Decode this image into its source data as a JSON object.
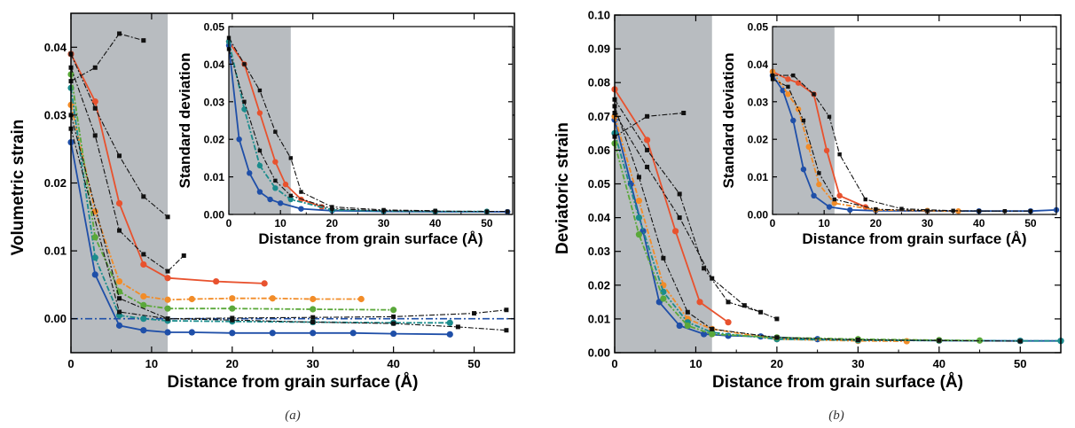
{
  "colors": {
    "shade": "#b8bcc0",
    "background_lines": "#555555",
    "black_series": "#111111",
    "red": "#e8522e",
    "orange": "#f28c28",
    "blue": "#1f4fa8",
    "teal": "#1a8c8c",
    "green": "#5aa83a",
    "zero_line": "#1f4fa8"
  },
  "chart_data": [
    {
      "id": "a",
      "type": "line",
      "caption": "(a)",
      "xlabel": "Distance from grain surface (Å)",
      "ylabel": "Volumetric strain",
      "xlim": [
        0,
        55
      ],
      "ylim": [
        -0.005,
        0.045
      ],
      "xticks": [
        0,
        10,
        20,
        30,
        40,
        50
      ],
      "xtick_labels": [
        "0",
        "10",
        "20",
        "30",
        "40",
        "50"
      ],
      "yticks": [
        0.0,
        0.01,
        0.02,
        0.03,
        0.04
      ],
      "ytick_labels": [
        "0.00",
        "0.01",
        "0.02",
        "0.03",
        "0.04"
      ],
      "shaded_region": [
        0,
        12
      ],
      "zero_line": 0.0,
      "series": [
        {
          "color": "red",
          "marker": "circle",
          "style": "solid",
          "x": [
            0,
            3,
            6,
            9,
            12,
            18,
            24
          ],
          "y": [
            0.039,
            0.032,
            0.017,
            0.008,
            0.006,
            0.0055,
            0.0052
          ]
        },
        {
          "color": "orange",
          "marker": "circle",
          "style": "dashdot",
          "x": [
            0,
            3,
            6,
            9,
            12,
            15,
            20,
            25,
            30,
            36
          ],
          "y": [
            0.0315,
            0.0158,
            0.0055,
            0.0033,
            0.0028,
            0.0029,
            0.003,
            0.003,
            0.0029,
            0.0029
          ]
        },
        {
          "color": "blue",
          "marker": "circle",
          "style": "solid",
          "x": [
            0,
            3,
            6,
            9,
            12,
            15,
            20,
            25,
            30,
            35,
            40,
            47
          ],
          "y": [
            0.026,
            0.0065,
            -0.001,
            -0.0017,
            -0.002,
            -0.002,
            -0.0021,
            -0.0021,
            -0.0021,
            -0.0021,
            -0.0022,
            -0.0023
          ]
        },
        {
          "color": "teal",
          "marker": "circle",
          "style": "dashdot",
          "x": [
            0,
            3,
            6,
            9,
            12,
            20,
            30,
            40,
            47
          ],
          "y": [
            0.034,
            0.009,
            0.0005,
            0.0,
            -0.0003,
            -0.0004,
            -0.0005,
            -0.0006,
            -0.0006
          ]
        },
        {
          "color": "green",
          "marker": "circle",
          "style": "dashdot",
          "x": [
            0,
            3,
            6,
            9,
            12,
            20,
            30,
            40
          ],
          "y": [
            0.036,
            0.012,
            0.004,
            0.002,
            0.0015,
            0.0015,
            0.0014,
            0.0013
          ]
        },
        {
          "color": "black_series",
          "marker": "square",
          "style": "dashdot",
          "x": [
            0,
            3,
            6,
            9
          ],
          "y": [
            0.035,
            0.037,
            0.042,
            0.041
          ]
        },
        {
          "color": "black_series",
          "marker": "square",
          "style": "dashdot",
          "x": [
            0,
            3,
            6,
            9,
            12
          ],
          "y": [
            0.039,
            0.031,
            0.024,
            0.018,
            0.015
          ]
        },
        {
          "color": "black_series",
          "marker": "square",
          "style": "dashdot",
          "x": [
            0,
            3,
            6,
            9,
            12,
            14
          ],
          "y": [
            0.037,
            0.027,
            0.013,
            0.0095,
            0.007,
            0.0093
          ]
        },
        {
          "color": "black_series",
          "marker": "square",
          "style": "dashdot",
          "x": [
            0,
            6,
            12,
            20,
            30,
            40,
            48,
            54
          ],
          "y": [
            0.03,
            0.003,
            0.0,
            -0.0002,
            -0.0005,
            -0.0007,
            -0.0012,
            -0.0017
          ]
        },
        {
          "color": "black_series",
          "marker": "square",
          "style": "dashdot",
          "x": [
            0,
            6,
            12,
            20,
            30,
            40,
            50,
            54
          ],
          "y": [
            0.028,
            0.001,
            0.0,
            0.0001,
            0.0002,
            0.0003,
            0.0008,
            0.0013
          ]
        }
      ],
      "inset": {
        "xlabel": "Distance from grain surface (Å)",
        "ylabel": "Standard deviation",
        "xlim": [
          0,
          55
        ],
        "ylim": [
          0,
          0.05
        ],
        "xticks": [
          0,
          10,
          20,
          30,
          40,
          50
        ],
        "xtick_labels": [
          "0",
          "10",
          "20",
          "30",
          "40",
          "50"
        ],
        "yticks": [
          0.0,
          0.01,
          0.02,
          0.03,
          0.04,
          0.05
        ],
        "ytick_labels": [
          "0.00",
          "0.01",
          "0.02",
          "0.03",
          "0.04",
          "0.05"
        ],
        "shaded_region": [
          0,
          12
        ],
        "series": [
          {
            "color": "red",
            "marker": "circle",
            "style": "solid",
            "x": [
              0,
              3,
              6,
              9,
              11,
              14,
              18
            ],
            "y": [
              0.046,
              0.04,
              0.027,
              0.014,
              0.008,
              0.004,
              0.002
            ]
          },
          {
            "color": "blue",
            "marker": "circle",
            "style": "solid",
            "x": [
              0,
              2,
              4,
              6,
              8,
              10,
              14,
              20,
              30,
              40,
              50,
              54
            ],
            "y": [
              0.045,
              0.02,
              0.011,
              0.006,
              0.004,
              0.003,
              0.0015,
              0.001,
              0.0008,
              0.0007,
              0.0007,
              0.0007
            ]
          },
          {
            "color": "teal",
            "marker": "circle",
            "style": "dashdot",
            "x": [
              0,
              3,
              6,
              9,
              12,
              20,
              30,
              40,
              50
            ],
            "y": [
              0.046,
              0.028,
              0.013,
              0.007,
              0.004,
              0.0012,
              0.0009,
              0.0008,
              0.0008
            ]
          },
          {
            "color": "black_series",
            "marker": "square",
            "style": "dashdot",
            "x": [
              0,
              3,
              6,
              9,
              12,
              14,
              20,
              30,
              40
            ],
            "y": [
              0.047,
              0.04,
              0.033,
              0.022,
              0.015,
              0.006,
              0.002,
              0.0012,
              0.001
            ]
          },
          {
            "color": "black_series",
            "marker": "square",
            "style": "dashdot",
            "x": [
              0,
              3,
              6,
              9,
              12,
              20,
              30,
              40,
              50,
              54
            ],
            "y": [
              0.044,
              0.03,
              0.017,
              0.009,
              0.005,
              0.0015,
              0.001,
              0.0009,
              0.0008,
              0.0008
            ]
          }
        ]
      }
    },
    {
      "id": "b",
      "type": "line",
      "caption": "(b)",
      "xlabel": "Distance from grain surface (Å)",
      "ylabel": "Deviatoric strain",
      "xlim": [
        0,
        55
      ],
      "ylim": [
        0,
        0.1
      ],
      "xticks": [
        0,
        10,
        20,
        30,
        40,
        50
      ],
      "xtick_labels": [
        "0",
        "10",
        "20",
        "30",
        "40",
        "50"
      ],
      "yticks": [
        0.0,
        0.01,
        0.02,
        0.03,
        0.04,
        0.05,
        0.06,
        0.07,
        0.08,
        0.09,
        0.1
      ],
      "ytick_labels": [
        "0.00",
        "0.01",
        "0.02",
        "0.03",
        "0.04",
        "0.05",
        "0.06",
        "0.07",
        "0.08",
        "0.09",
        "0.10"
      ],
      "shaded_region": [
        0,
        12
      ],
      "series": [
        {
          "color": "red",
          "marker": "circle",
          "style": "solid",
          "x": [
            0,
            4,
            7.5,
            10.5,
            14
          ],
          "y": [
            0.078,
            0.063,
            0.036,
            0.015,
            0.009
          ]
        },
        {
          "color": "blue",
          "marker": "circle",
          "style": "solid",
          "x": [
            0,
            2,
            3.5,
            5.5,
            8,
            11,
            14,
            18,
            25,
            30,
            40,
            50,
            55
          ],
          "y": [
            0.069,
            0.05,
            0.036,
            0.015,
            0.008,
            0.0055,
            0.005,
            0.0048,
            0.004,
            0.0038,
            0.0036,
            0.0035,
            0.0035
          ]
        },
        {
          "color": "orange",
          "marker": "circle",
          "style": "dashdot",
          "x": [
            0,
            3,
            6,
            9,
            12,
            20,
            30,
            36
          ],
          "y": [
            0.07,
            0.045,
            0.02,
            0.01,
            0.007,
            0.004,
            0.0035,
            0.0034
          ]
        },
        {
          "color": "teal",
          "marker": "circle",
          "style": "dashdot",
          "x": [
            0,
            3,
            6,
            9,
            12,
            20,
            30,
            40,
            50,
            55
          ],
          "y": [
            0.065,
            0.04,
            0.018,
            0.009,
            0.006,
            0.004,
            0.0037,
            0.0036,
            0.0035,
            0.0035
          ]
        },
        {
          "color": "green",
          "marker": "circle",
          "style": "dashdot",
          "x": [
            0,
            3,
            6,
            9,
            12,
            20,
            30,
            40,
            45
          ],
          "y": [
            0.062,
            0.035,
            0.016,
            0.008,
            0.0055,
            0.0045,
            0.004,
            0.0037,
            0.0036
          ]
        },
        {
          "color": "black_series",
          "marker": "square",
          "style": "dashdot",
          "x": [
            0,
            4,
            8.5
          ],
          "y": [
            0.064,
            0.07,
            0.071
          ]
        },
        {
          "color": "black_series",
          "marker": "square",
          "style": "dashdot",
          "x": [
            0,
            4,
            8,
            11,
            14,
            18
          ],
          "y": [
            0.075,
            0.06,
            0.047,
            0.025,
            0.015,
            0.012
          ]
        },
        {
          "color": "black_series",
          "marker": "square",
          "style": "dashdot",
          "x": [
            0,
            4,
            8,
            12,
            16,
            20
          ],
          "y": [
            0.071,
            0.055,
            0.04,
            0.022,
            0.014,
            0.01
          ]
        },
        {
          "color": "black_series",
          "marker": "square",
          "style": "dashdot",
          "x": [
            0,
            3,
            6,
            9,
            12,
            20,
            30,
            40,
            50
          ],
          "y": [
            0.073,
            0.052,
            0.028,
            0.012,
            0.007,
            0.0045,
            0.0038,
            0.0036,
            0.0034
          ]
        }
      ],
      "inset": {
        "xlabel": "Distance from grain surface (Å)",
        "ylabel": "Standard deviation",
        "xlim": [
          0,
          55
        ],
        "ylim": [
          0,
          0.05
        ],
        "xticks": [
          0,
          10,
          20,
          30,
          40,
          50
        ],
        "xtick_labels": [
          "0",
          "10",
          "20",
          "30",
          "40",
          "50"
        ],
        "yticks": [
          0.0,
          0.01,
          0.02,
          0.03,
          0.04,
          0.05
        ],
        "ytick_labels": [
          "0.00",
          "0.01",
          "0.02",
          "0.03",
          "0.04",
          "0.05"
        ],
        "shaded_region": [
          0,
          12
        ],
        "series": [
          {
            "color": "red",
            "marker": "circle",
            "style": "solid",
            "x": [
              0,
              3,
              5,
              8,
              10.5,
              13,
              18
            ],
            "y": [
              0.038,
              0.036,
              0.035,
              0.032,
              0.017,
              0.005,
              0.002
            ]
          },
          {
            "color": "blue",
            "marker": "circle",
            "style": "solid",
            "x": [
              0,
              2,
              4,
              6,
              8,
              11,
              15,
              20,
              30,
              40,
              50,
              55
            ],
            "y": [
              0.037,
              0.033,
              0.025,
              0.012,
              0.005,
              0.002,
              0.0012,
              0.001,
              0.0009,
              0.0009,
              0.0009,
              0.0012
            ]
          },
          {
            "color": "orange",
            "marker": "circle",
            "style": "dashdot",
            "x": [
              0,
              3,
              5,
              7,
              9,
              12,
              20,
              30,
              36
            ],
            "y": [
              0.038,
              0.032,
              0.028,
              0.018,
              0.008,
              0.003,
              0.0012,
              0.001,
              0.0009
            ]
          },
          {
            "color": "black_series",
            "marker": "square",
            "style": "dashdot",
            "x": [
              0,
              4,
              8,
              11,
              13,
              18,
              25,
              35,
              45
            ],
            "y": [
              0.037,
              0.037,
              0.032,
              0.026,
              0.016,
              0.004,
              0.0015,
              0.001,
              0.0009
            ]
          },
          {
            "color": "black_series",
            "marker": "square",
            "style": "dashdot",
            "x": [
              0,
              3,
              6,
              9,
              12,
              20,
              30,
              40,
              50
            ],
            "y": [
              0.036,
              0.034,
              0.025,
              0.011,
              0.004,
              0.0014,
              0.001,
              0.0009,
              0.0009
            ]
          }
        ]
      }
    }
  ]
}
